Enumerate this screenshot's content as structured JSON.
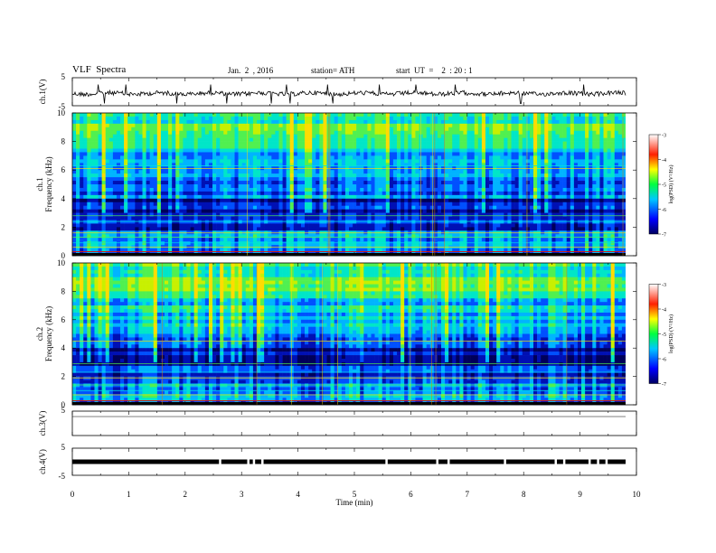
{
  "header": {
    "title": "VLF  Spectra",
    "date": "Jan.  2  , 2016",
    "station": "station= ATH",
    "start": "start  UT  =    2  : 20 : 1"
  },
  "chart_data": [
    {
      "type": "line",
      "panel": "ch1-waveform",
      "ylabel": "ch.1(V)",
      "ylim": [
        -5,
        5
      ],
      "yticks": [
        "5",
        "-5"
      ],
      "xlim": [
        0,
        10
      ],
      "trace_color": "#000000"
    },
    {
      "type": "heatmap",
      "panel": "ch1-spectrogram",
      "ylabel_lines": [
        "ch.1",
        "Frequency  (kHz)"
      ],
      "ylim": [
        0,
        10
      ],
      "yticks": [
        "0",
        "2",
        "4",
        "6",
        "8",
        "10"
      ],
      "xlim": [
        0,
        9.8
      ],
      "colorbar": {
        "label": "log(PSD) (V²/Hz)",
        "range": [
          -7,
          -3
        ],
        "ticks": [
          "-3",
          "-4",
          "-5",
          "-6",
          "-7"
        ]
      }
    },
    {
      "type": "heatmap",
      "panel": "ch2-spectrogram",
      "ylabel_lines": [
        "ch.2",
        "Frequency  (kHz)"
      ],
      "ylim": [
        0,
        10
      ],
      "yticks": [
        "0",
        "2",
        "4",
        "6",
        "8",
        "10"
      ],
      "xlim": [
        0,
        9.8
      ],
      "colorbar": {
        "label": "log(PSD) (V²/Hz)",
        "range": [
          -7,
          -3
        ],
        "ticks": [
          "-3",
          "-4",
          "-5",
          "-6",
          "-7"
        ]
      }
    },
    {
      "type": "line",
      "panel": "ch3-waveform",
      "ylabel": "ch.3(V)",
      "ylim": [
        -5,
        5
      ],
      "yticks": [
        "5"
      ],
      "xlim": [
        0,
        10
      ]
    },
    {
      "type": "line",
      "panel": "ch4-waveform",
      "ylabel": "ch.4(V)",
      "ylim": [
        -5,
        5
      ],
      "yticks": [
        "5",
        "-5"
      ],
      "xlim": [
        0,
        10
      ]
    }
  ],
  "xaxis": {
    "label": "Time  (min)",
    "ticks": [
      "0",
      "1",
      "2",
      "3",
      "4",
      "5",
      "6",
      "7",
      "8",
      "9",
      "10"
    ]
  },
  "colors": {
    "bg_dark": "#00005a",
    "blue": "#0014d2",
    "cyan": "#00c8ff",
    "green": "#28e060",
    "yellow": "#ffdc00",
    "red": "#d21c1c"
  }
}
